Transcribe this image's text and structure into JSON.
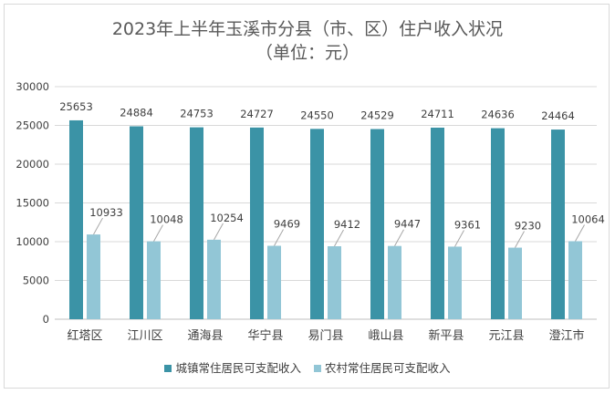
{
  "chart_data": {
    "type": "bar",
    "title": "2023年上半年玉溪市分县（市、区）住户收入状况",
    "subtitle": "（单位：元）",
    "categories": [
      "红塔区",
      "江川区",
      "通海县",
      "华宁县",
      "易门县",
      "峨山县",
      "新平县",
      "元江县",
      "澄江市"
    ],
    "series": [
      {
        "name": "城镇常住居民可支配收入",
        "color": "#3b93a6",
        "values": [
          25653,
          24884,
          24753,
          24727,
          24550,
          24529,
          24711,
          24636,
          24464
        ]
      },
      {
        "name": "农村常住居民可支配收入",
        "color": "#92c6d6",
        "values": [
          10933,
          10048,
          10254,
          9469,
          9412,
          9447,
          9361,
          9230,
          10064
        ]
      }
    ],
    "ylim": [
      0,
      30000
    ],
    "yticks": [
      0,
      5000,
      10000,
      15000,
      20000,
      25000,
      30000
    ],
    "grid": true,
    "legend_position": "bottom",
    "data_labels": true,
    "xlabel": "",
    "ylabel": ""
  }
}
